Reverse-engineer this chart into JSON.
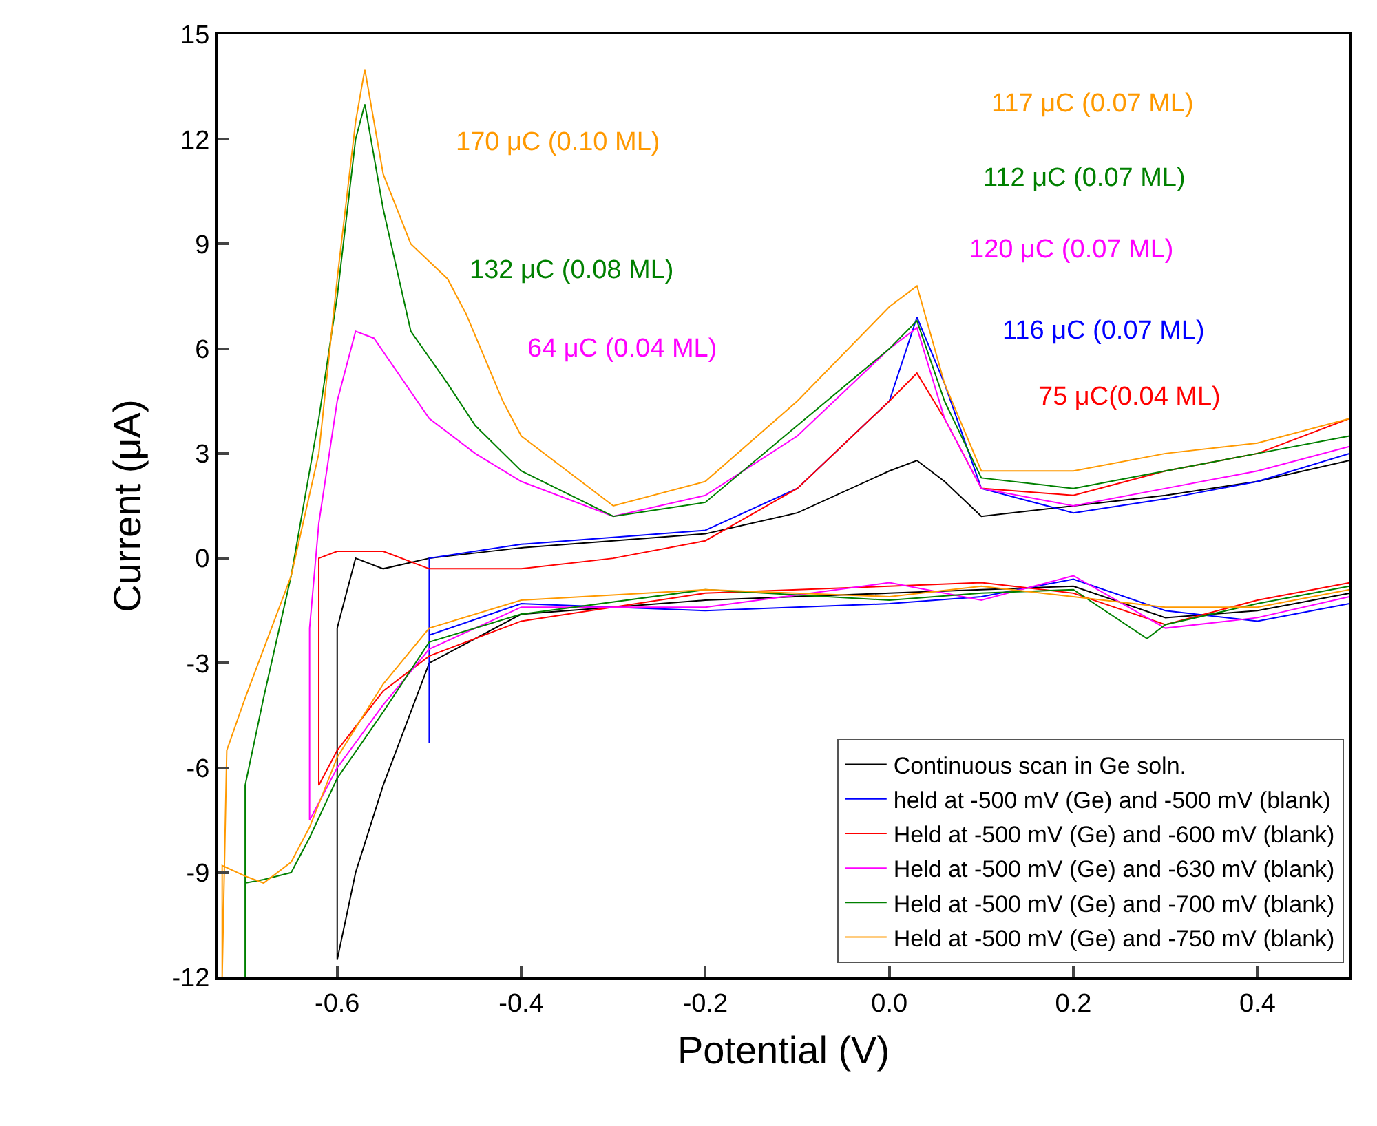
{
  "chart_data": {
    "type": "line",
    "xlabel": "Potential (V)",
    "ylabel": "Current (μA)",
    "xlim": [
      -0.73,
      0.5
    ],
    "xticks": [
      -0.6,
      -0.4,
      -0.2,
      {
        "value": 0,
        "label": "0.0"
      },
      0.2,
      0.4
    ],
    "ylim": [
      -12,
      15
    ],
    "yticks": [
      -12,
      -9,
      -6,
      -3,
      0,
      3,
      6,
      9,
      12,
      15
    ],
    "grid": false,
    "legend": "bottom right",
    "marker": "none",
    "line_style": "solid",
    "series": [
      {
        "name": "Continuous scan in Ge soln.",
        "color": "#000000",
        "x": [
          0.5,
          0.4,
          0.3,
          0.2,
          0.1,
          0.0,
          -0.2,
          -0.4,
          -0.5,
          -0.55,
          -0.58,
          -0.6,
          -0.6,
          -0.59,
          -0.58,
          -0.55,
          -0.5,
          -0.4,
          -0.3,
          -0.2,
          -0.1,
          0.0,
          0.03,
          0.06,
          0.1,
          0.2,
          0.3,
          0.4,
          0.5
        ],
        "values": [
          -1.0,
          -1.5,
          -1.7,
          -0.8,
          -0.9,
          -1.0,
          -1.2,
          -1.6,
          -3.0,
          -6.5,
          -9,
          -11.5,
          -2,
          -1,
          0,
          -0.3,
          0,
          0.3,
          0.5,
          0.7,
          1.3,
          2.5,
          2.8,
          2.2,
          1.2,
          1.5,
          1.8,
          2.2,
          2.8
        ]
      },
      {
        "name": "held at -500 mV (Ge) and -500 mV (blank)",
        "color": "#0000ff",
        "x": [
          0.5,
          0.4,
          0.3,
          0.2,
          0.1,
          0.0,
          -0.2,
          -0.4,
          -0.5,
          -0.5,
          -0.5,
          -0.4,
          -0.3,
          -0.2,
          -0.1,
          0.0,
          0.03,
          0.06,
          0.1,
          0.2,
          0.3,
          0.4,
          0.5,
          0.5
        ],
        "values": [
          -1.3,
          -1.8,
          -1.5,
          -0.6,
          -1.1,
          -1.3,
          -1.5,
          -1.3,
          -2.2,
          -5.3,
          0,
          0.4,
          0.6,
          0.8,
          2,
          4.5,
          6.9,
          5,
          2,
          1.3,
          1.7,
          2.2,
          3,
          7.5
        ]
      },
      {
        "name": "Held at -500 mV (Ge) and -600 mV (blank)",
        "color": "#ff0000",
        "x": [
          0.5,
          0.4,
          0.3,
          0.2,
          0.1,
          0.0,
          -0.2,
          -0.4,
          -0.5,
          -0.55,
          -0.6,
          -0.62,
          -0.62,
          -0.6,
          -0.55,
          -0.5,
          -0.4,
          -0.3,
          -0.2,
          -0.1,
          0.0,
          0.03,
          0.06,
          0.1,
          0.2,
          0.3,
          0.4,
          0.5,
          0.5
        ],
        "values": [
          -0.7,
          -1.2,
          -1.9,
          -1.0,
          -0.7,
          -0.8,
          -1.0,
          -1.8,
          -2.8,
          -3.8,
          -5.5,
          -6.5,
          0,
          0.2,
          0.2,
          -0.3,
          -0.3,
          0,
          0.5,
          2,
          4.5,
          5.3,
          4,
          2,
          1.8,
          2.5,
          3,
          4,
          7
        ]
      },
      {
        "name": "Held at -500 mV (Ge) and -630 mV (blank)",
        "color": "#ff00ff",
        "x": [
          0.5,
          0.4,
          0.3,
          0.2,
          0.1,
          0.0,
          -0.2,
          -0.4,
          -0.5,
          -0.55,
          -0.6,
          -0.63,
          -0.63,
          -0.62,
          -0.6,
          -0.58,
          -0.56,
          -0.5,
          -0.45,
          -0.4,
          -0.3,
          -0.2,
          -0.1,
          0.0,
          0.03,
          0.06,
          0.1,
          0.2,
          0.3,
          0.4,
          0.5
        ],
        "values": [
          -1.1,
          -1.7,
          -2.0,
          -0.5,
          -1.2,
          -0.7,
          -1.4,
          -1.4,
          -2.6,
          -4.2,
          -6,
          -7.5,
          -2,
          1,
          4.5,
          6.5,
          6.3,
          4,
          3,
          2.2,
          1.2,
          1.8,
          3.5,
          6,
          6.6,
          4,
          2,
          1.5,
          2,
          2.5,
          3.2
        ]
      },
      {
        "name": "Held at -500 mV (Ge) and -700 mV (blank)",
        "color": "#008000",
        "x": [
          0.5,
          0.4,
          0.3,
          0.28,
          0.2,
          0.1,
          0.0,
          -0.2,
          -0.4,
          -0.5,
          -0.55,
          -0.6,
          -0.63,
          -0.65,
          -0.68,
          -0.7,
          -0.7,
          -0.7,
          -0.68,
          -0.65,
          -0.62,
          -0.6,
          -0.58,
          -0.57,
          -0.55,
          -0.52,
          -0.48,
          -0.45,
          -0.4,
          -0.3,
          -0.2,
          -0.1,
          0.0,
          0.03,
          0.06,
          0.1,
          0.2,
          0.3,
          0.4,
          0.5
        ],
        "values": [
          -0.8,
          -1.3,
          -1.9,
          -2.3,
          -0.9,
          -1.0,
          -1.2,
          -0.9,
          -1.6,
          -2.4,
          -4.4,
          -6.3,
          -8,
          -9,
          -9.2,
          -9.3,
          -12,
          -6.5,
          -4,
          -0.5,
          4,
          7.5,
          12,
          13,
          10,
          6.5,
          5,
          3.8,
          2.5,
          1.2,
          1.6,
          3.8,
          6,
          6.8,
          4.5,
          2.3,
          2,
          2.5,
          3,
          3.5
        ]
      },
      {
        "name": "Held at -500 mV (Ge) and -750 mV (blank)",
        "color": "#ff9900",
        "x": [
          0.5,
          0.4,
          0.3,
          0.2,
          0.1,
          0.0,
          -0.2,
          -0.4,
          -0.5,
          -0.55,
          -0.6,
          -0.63,
          -0.65,
          -0.68,
          -0.7,
          -0.725,
          -0.725,
          -0.72,
          -0.7,
          -0.65,
          -0.62,
          -0.6,
          -0.58,
          -0.57,
          -0.55,
          -0.52,
          -0.48,
          -0.46,
          -0.42,
          -0.4,
          -0.3,
          -0.2,
          -0.1,
          0.0,
          0.03,
          0.06,
          0.1,
          0.2,
          0.3,
          0.4,
          0.5
        ],
        "values": [
          -0.9,
          -1.4,
          -1.4,
          -1.1,
          -0.8,
          -1.1,
          -0.9,
          -1.2,
          -2.0,
          -3.6,
          -5.7,
          -7.7,
          -8.7,
          -9.3,
          -9.1,
          -8.8,
          -12,
          -5.5,
          -4,
          -0.5,
          3,
          8,
          12.5,
          14,
          11,
          9,
          8,
          7,
          4.5,
          3.5,
          1.5,
          2.2,
          4.5,
          7.2,
          7.8,
          5,
          2.5,
          2.5,
          3,
          3.3,
          4
        ]
      }
    ],
    "annotations": [
      "170 μC (0.10 ML)",
      "132 μC (0.08 ML)",
      "64 μC (0.04 ML)",
      "117 μC (0.07 ML)",
      "112 μC (0.07 ML)",
      "120 μC (0.07 ML)",
      "116 μC (0.07 ML)",
      "75 μC(0.04 ML)"
    ]
  }
}
